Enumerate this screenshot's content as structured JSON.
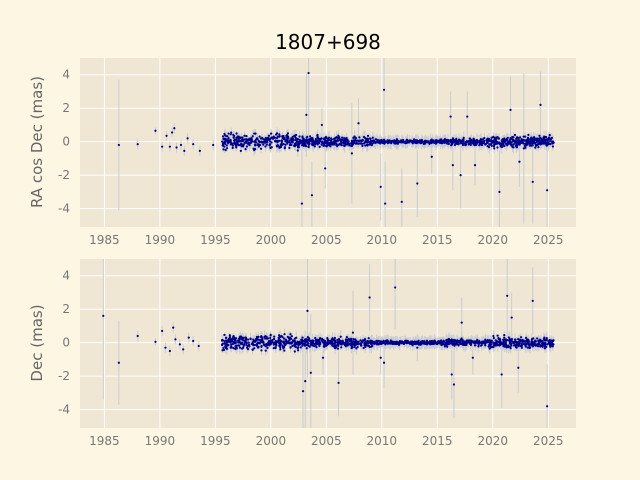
{
  "chart_data": {
    "title": "1807+698",
    "type": "scatter",
    "xlim": [
      1982.8,
      2027.5
    ],
    "x_ticks": [
      1985,
      1990,
      1995,
      2000,
      2005,
      2010,
      2015,
      2020,
      2025
    ],
    "grid": true,
    "colors": {
      "background": "#fdf6e3",
      "axes": "#efe6d3",
      "grid": "#ffffff",
      "points": "#00008b",
      "errorbars": "#c9cdd3",
      "ticks": "#777777"
    },
    "panels": [
      {
        "ylabel": "RA cos Dec (mas)",
        "ylim": [
          -5.1,
          5.0
        ],
        "y_ticks": [
          -4,
          -2,
          0,
          2,
          4
        ],
        "points": [
          {
            "x": 1986.3,
            "y": -0.2,
            "err": 3.9
          },
          {
            "x": 1988.0,
            "y": -0.15,
            "err": 0.3
          },
          {
            "x": 1989.6,
            "y": 0.65,
            "err": 0.2
          },
          {
            "x": 1990.2,
            "y": -0.3,
            "err": 0.3
          },
          {
            "x": 1990.6,
            "y": 0.35,
            "err": 0.3
          },
          {
            "x": 1990.9,
            "y": -0.3,
            "err": 0.3
          },
          {
            "x": 1991.1,
            "y": 0.55,
            "err": 0.3
          },
          {
            "x": 1991.3,
            "y": 0.8,
            "err": 0.3
          },
          {
            "x": 1991.5,
            "y": -0.35,
            "err": 0.3
          },
          {
            "x": 1991.9,
            "y": -0.2,
            "err": 0.3
          },
          {
            "x": 1992.2,
            "y": -0.55,
            "err": 0.3
          },
          {
            "x": 1992.5,
            "y": 0.2,
            "err": 0.3
          },
          {
            "x": 1993.0,
            "y": -0.15,
            "err": 0.3
          },
          {
            "x": 1993.6,
            "y": -0.55,
            "err": 0.3
          },
          {
            "x": 1994.8,
            "y": -0.2,
            "err": 0.3
          },
          {
            "x": 2002.8,
            "y": -3.7,
            "err": 3.5
          },
          {
            "x": 2003.2,
            "y": 1.6,
            "err": 2.5
          },
          {
            "x": 2003.4,
            "y": 4.1,
            "err": 4.0
          },
          {
            "x": 2003.7,
            "y": -3.2,
            "err": 2.0
          },
          {
            "x": 2004.6,
            "y": 1.0,
            "err": 1.0
          },
          {
            "x": 2004.9,
            "y": -1.6,
            "err": 1.2
          },
          {
            "x": 2007.3,
            "y": -0.7,
            "err": 3.0
          },
          {
            "x": 2007.9,
            "y": 1.1,
            "err": 1.5
          },
          {
            "x": 2009.9,
            "y": -2.7,
            "err": 2.0
          },
          {
            "x": 2010.2,
            "y": 3.1,
            "err": 3.0
          },
          {
            "x": 2010.3,
            "y": -3.7,
            "err": 2.5
          },
          {
            "x": 2011.8,
            "y": -3.6,
            "err": 2.0
          },
          {
            "x": 2013.2,
            "y": -2.5,
            "err": 2.0
          },
          {
            "x": 2014.5,
            "y": -0.9,
            "err": 1.0
          },
          {
            "x": 2016.2,
            "y": 1.5,
            "err": 1.5
          },
          {
            "x": 2016.4,
            "y": -1.4,
            "err": 1.5
          },
          {
            "x": 2017.1,
            "y": -2.0,
            "err": 2.0
          },
          {
            "x": 2017.7,
            "y": 1.5,
            "err": 1.5
          },
          {
            "x": 2018.4,
            "y": -1.4,
            "err": 1.2
          },
          {
            "x": 2020.6,
            "y": -3.0,
            "err": 2.5
          },
          {
            "x": 2021.6,
            "y": 1.9,
            "err": 2.0
          },
          {
            "x": 2022.4,
            "y": -1.2,
            "err": 1.5
          },
          {
            "x": 2022.8,
            "y": -0.4,
            "err": 4.5
          },
          {
            "x": 2023.6,
            "y": -2.4,
            "err": 2.5
          },
          {
            "x": 2024.3,
            "y": 2.2,
            "err": 2.0
          },
          {
            "x": 2024.9,
            "y": -2.9,
            "err": 2.5
          }
        ]
      },
      {
        "ylabel": "Dec (mas)",
        "ylim": [
          -5.1,
          5.0
        ],
        "y_ticks": [
          -4,
          -2,
          0,
          2,
          4
        ],
        "points": [
          {
            "x": 1984.9,
            "y": 1.6,
            "err": 5.0
          },
          {
            "x": 1986.3,
            "y": -1.2,
            "err": 2.5
          },
          {
            "x": 1988.0,
            "y": 0.4,
            "err": 0.3
          },
          {
            "x": 1989.6,
            "y": 0.05,
            "err": 0.2
          },
          {
            "x": 1990.2,
            "y": 0.7,
            "err": 0.3
          },
          {
            "x": 1990.5,
            "y": -0.3,
            "err": 0.3
          },
          {
            "x": 1990.9,
            "y": -0.5,
            "err": 0.3
          },
          {
            "x": 1991.2,
            "y": 0.9,
            "err": 0.3
          },
          {
            "x": 1991.4,
            "y": 0.2,
            "err": 0.3
          },
          {
            "x": 1991.8,
            "y": -0.1,
            "err": 0.3
          },
          {
            "x": 1992.1,
            "y": -0.4,
            "err": 0.3
          },
          {
            "x": 1992.6,
            "y": 0.3,
            "err": 0.3
          },
          {
            "x": 1993.0,
            "y": 0.1,
            "err": 0.3
          },
          {
            "x": 1993.5,
            "y": -0.2,
            "err": 0.3
          },
          {
            "x": 2002.9,
            "y": -2.9,
            "err": 3.0
          },
          {
            "x": 2003.1,
            "y": -2.3,
            "err": 3.0
          },
          {
            "x": 2003.3,
            "y": 1.9,
            "err": 4.0
          },
          {
            "x": 2003.6,
            "y": -1.8,
            "err": 3.5
          },
          {
            "x": 2004.7,
            "y": -0.9,
            "err": 1.0
          },
          {
            "x": 2006.1,
            "y": -2.4,
            "err": 2.0
          },
          {
            "x": 2007.4,
            "y": 0.6,
            "err": 2.5
          },
          {
            "x": 2008.9,
            "y": 2.7,
            "err": 2.0
          },
          {
            "x": 2009.9,
            "y": -0.9,
            "err": 1.0
          },
          {
            "x": 2010.2,
            "y": -1.2,
            "err": 1.5
          },
          {
            "x": 2011.2,
            "y": 3.3,
            "err": 2.5
          },
          {
            "x": 2013.2,
            "y": -0.3,
            "err": 0.8
          },
          {
            "x": 2016.3,
            "y": -1.9,
            "err": 1.5
          },
          {
            "x": 2016.5,
            "y": -2.5,
            "err": 2.0
          },
          {
            "x": 2017.2,
            "y": 1.2,
            "err": 1.5
          },
          {
            "x": 2018.2,
            "y": -0.9,
            "err": 1.0
          },
          {
            "x": 2020.8,
            "y": -1.9,
            "err": 2.0
          },
          {
            "x": 2021.3,
            "y": 2.8,
            "err": 2.5
          },
          {
            "x": 2021.7,
            "y": 1.5,
            "err": 1.5
          },
          {
            "x": 2022.3,
            "y": -1.5,
            "err": 1.5
          },
          {
            "x": 2023.6,
            "y": 2.5,
            "err": 2.0
          },
          {
            "x": 2024.9,
            "y": -3.8,
            "err": 2.5
          }
        ]
      }
    ]
  }
}
